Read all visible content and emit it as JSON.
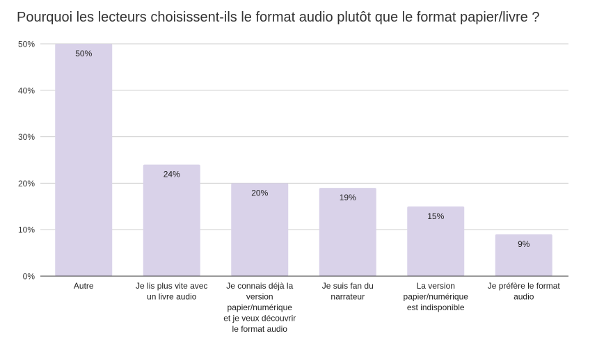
{
  "chart_data": {
    "type": "bar",
    "title": "Pourquoi les lecteurs choisissent-ils le format audio plutôt que le format papier/livre ?",
    "xlabel": "",
    "ylabel": "",
    "ylim": [
      0,
      50
    ],
    "yticks": [
      "0%",
      "10%",
      "20%",
      "30%",
      "40%",
      "50%"
    ],
    "ytick_values": [
      0,
      10,
      20,
      30,
      40,
      50
    ],
    "categories": [
      [
        "Autre"
      ],
      [
        "Je lis plus vite avec",
        "un livre audio"
      ],
      [
        "Je connais déjà la",
        "version",
        "papier/numérique",
        "et je veux découvrir",
        "le format audio"
      ],
      [
        "Je suis fan du",
        "narrateur"
      ],
      [
        "La version",
        "papier/numérique",
        "est indisponible"
      ],
      [
        "Je préfère le format",
        "audio"
      ]
    ],
    "values": [
      50,
      24,
      20,
      19,
      15,
      9
    ],
    "value_labels": [
      "50%",
      "24%",
      "20%",
      "19%",
      "15%",
      "9%"
    ],
    "bar_color": "#d9d2e9",
    "grid": true,
    "legend": "none"
  }
}
